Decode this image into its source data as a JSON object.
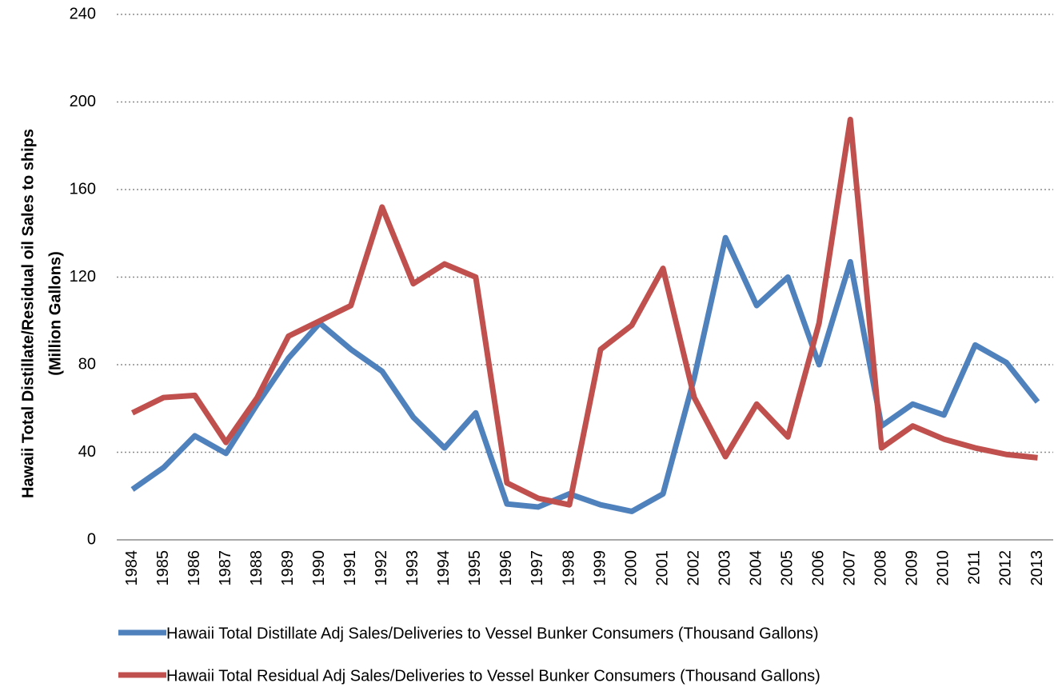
{
  "chart_data": {
    "type": "line",
    "y_label": [
      "Hawaii Total Distillate/Residual oil Sales to ships",
      "(Million Gallons)"
    ],
    "categories": [
      "1984",
      "1985",
      "1986",
      "1987",
      "1988",
      "1989",
      "1990",
      "1991",
      "1992",
      "1993",
      "1994",
      "1995",
      "1996",
      "1997",
      "1998",
      "1999",
      "2000",
      "2001",
      "2002",
      "2003",
      "2004",
      "2005",
      "2006",
      "2007",
      "2008",
      "2009",
      "2010",
      "2011",
      "2012",
      "2013"
    ],
    "series": [
      {
        "name": "Hawaii Total Distillate Adj Sales/Deliveries to Vessel Bunker Consumers (Thousand Gallons)",
        "color": "#4f81bd",
        "values": [
          23,
          33,
          47.5,
          39.5,
          62,
          83,
          99,
          87,
          77,
          56,
          42,
          58,
          16.4,
          15,
          21,
          16,
          13,
          21,
          74,
          138,
          107,
          120,
          80,
          127,
          52,
          62,
          57,
          89,
          81,
          63
        ]
      },
      {
        "name": "Hawaii Total Residual Adj Sales/Deliveries to Vessel Bunker Consumers (Thousand Gallons)",
        "color": "#c0504d",
        "values": [
          58,
          65,
          66,
          44.5,
          65,
          93,
          100,
          107,
          152,
          117,
          126,
          120,
          26,
          19,
          16,
          87,
          98,
          124,
          65,
          38,
          62,
          47,
          99,
          192,
          42,
          52,
          46,
          42,
          39,
          37.5
        ]
      }
    ],
    "ylim": [
      0,
      240
    ],
    "yticks": [
      0,
      40,
      80,
      120,
      160,
      200,
      240
    ],
    "grid": true
  }
}
